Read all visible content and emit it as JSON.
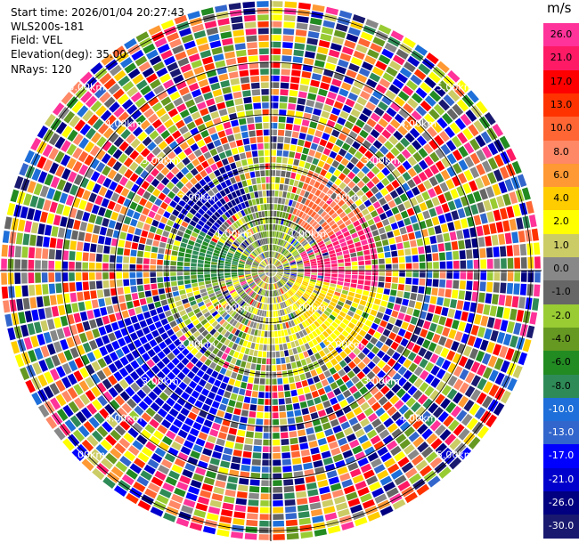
{
  "header": {
    "start_time": "Start time: 2026/01/04 20:27:43",
    "site": "WLS200s-181",
    "field": "Field: VEL",
    "elevation": "Elevation(deg): 35.00",
    "nrays": "NRays: 120"
  },
  "chart_data": {
    "type": "ppi-radar",
    "field": "VEL",
    "unit": "m/s",
    "n_rays": 120,
    "elevation_deg": 35.0,
    "range_rings_km": [
      1.0,
      2.0,
      3.0,
      4.0,
      5.0
    ],
    "ring_labels": [
      "1.00km",
      "2.00km",
      "3.00km",
      "4.00km",
      "5.00km"
    ],
    "max_range_km": 5.2,
    "colorbar": {
      "ticks": [
        "26.0",
        "21.0",
        "17.0",
        "13.0",
        "10.0",
        "8.0",
        "6.0",
        "4.0",
        "2.0",
        "1.0",
        "0.0",
        "-1.0",
        "-2.0",
        "-4.0",
        "-6.0",
        "-8.0",
        "-10.0",
        "-13.0",
        "-17.0",
        "-21.0",
        "-26.0",
        "-30.0"
      ],
      "colors": [
        "#ff3399",
        "#ff1a66",
        "#ff0000",
        "#ff3300",
        "#ff6633",
        "#ff8866",
        "#ff9933",
        "#ffcc00",
        "#ffff00",
        "#cccc66",
        "#888888",
        "#666666",
        "#99cc33",
        "#669922",
        "#228b22",
        "#2e8b57",
        "#1e6fd9",
        "#3366cc",
        "#0000ff",
        "#0000cc",
        "#000080",
        "#191970"
      ]
    },
    "velocity_sectors": [
      {
        "from_deg": 20,
        "to_deg": 60,
        "velocity": 10.0,
        "range_km": [
          1.0,
          2.0
        ]
      },
      {
        "from_deg": 60,
        "to_deg": 100,
        "velocity": 26.0,
        "range_km": [
          0.6,
          2.0
        ]
      },
      {
        "from_deg": 100,
        "to_deg": 150,
        "velocity": 4.0,
        "range_km": [
          0.5,
          2.2
        ]
      },
      {
        "from_deg": 150,
        "to_deg": 200,
        "velocity": 2.0,
        "range_km": [
          0.4,
          1.6
        ]
      },
      {
        "from_deg": 200,
        "to_deg": 250,
        "velocity": -17.0,
        "range_km": [
          2.2,
          3.6
        ]
      },
      {
        "from_deg": 260,
        "to_deg": 300,
        "velocity": -6.0,
        "range_km": [
          0.4,
          1.8
        ]
      },
      {
        "from_deg": 300,
        "to_deg": 340,
        "velocity": -21.0,
        "range_km": [
          1.2,
          2.2
        ]
      },
      {
        "from_deg": 340,
        "to_deg": 20,
        "velocity": -2.0,
        "range_km": [
          0.2,
          1.2
        ]
      }
    ]
  }
}
